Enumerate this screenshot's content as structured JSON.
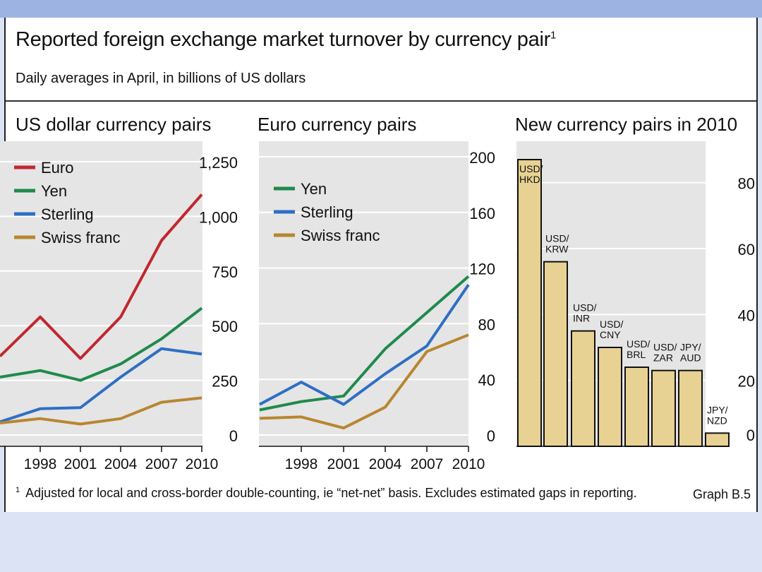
{
  "header": {
    "title": "Reported foreign exchange market turnover by currency pair",
    "title_note": "1",
    "subtitle": "Daily averages in April, in billions of US dollars"
  },
  "footer": {
    "note_marker": "1",
    "note": "Adjusted for local and cross-border double-counting, ie “net-net” basis. Excludes estimated gaps in reporting.",
    "graph_id": "Graph B.5"
  },
  "colors": {
    "euro": "#c0282f",
    "yen": "#1f8a4c",
    "sterling": "#2f6fc4",
    "swiss": "#b88630",
    "bar": "#e8d293",
    "plotbg": "#e5e5e5"
  },
  "chart_data": [
    {
      "type": "line",
      "title": "US dollar currency pairs",
      "x": [
        1995,
        1998,
        2001,
        2004,
        2007,
        2010
      ],
      "xticks": [
        "1998",
        "2001",
        "2004",
        "2007",
        "2010"
      ],
      "ylim": [
        0,
        1250
      ],
      "yticks": [
        "0",
        "250",
        "500",
        "750",
        "1,000",
        "1,250"
      ],
      "series": [
        {
          "name": "Euro",
          "color": "#c0282f",
          "values": [
            360,
            540,
            350,
            540,
            890,
            1100
          ]
        },
        {
          "name": "Yen",
          "color": "#1f8a4c",
          "values": [
            265,
            295,
            250,
            325,
            440,
            580
          ]
        },
        {
          "name": "Sterling",
          "color": "#2f6fc4",
          "values": [
            60,
            120,
            125,
            265,
            395,
            370
          ]
        },
        {
          "name": "Swiss franc",
          "color": "#b88630",
          "values": [
            55,
            75,
            50,
            75,
            150,
            170
          ]
        }
      ]
    },
    {
      "type": "line",
      "title": "Euro currency pairs",
      "x": [
        1995,
        1998,
        2001,
        2004,
        2007,
        2010
      ],
      "xticks": [
        "1998",
        "2001",
        "2004",
        "2007",
        "2010"
      ],
      "ylim": [
        0,
        200
      ],
      "yticks": [
        "0",
        "40",
        "80",
        "120",
        "160",
        "200"
      ],
      "series": [
        {
          "name": "Yen",
          "color": "#1f8a4c",
          "values": [
            18,
            24,
            28,
            62,
            88,
            114
          ]
        },
        {
          "name": "Sterling",
          "color": "#2f6fc4",
          "values": [
            22,
            38,
            22,
            44,
            64,
            108
          ]
        },
        {
          "name": "Swiss franc",
          "color": "#b88630",
          "values": [
            12,
            13,
            5,
            20,
            60,
            72
          ]
        }
      ]
    },
    {
      "type": "bar",
      "title": "New currency pairs in 2010",
      "categories": [
        "USD/ HKD",
        "USD/ KRW",
        "USD/ INR",
        "USD/ CNY",
        "USD/ BRL",
        "USD/ ZAR",
        "JPY/ AUD",
        "JPY/ NZD"
      ],
      "labels": [
        [
          "USD/",
          "HKD"
        ],
        [
          "USD/",
          "KRW"
        ],
        [
          "USD/",
          "INR"
        ],
        [
          "USD/",
          "CNY"
        ],
        [
          "USD/",
          "BRL"
        ],
        [
          "USD/",
          "ZAR"
        ],
        [
          "JPY/",
          "AUD"
        ],
        [
          "JPY/",
          "NZD"
        ]
      ],
      "values": [
        87,
        56,
        35,
        30,
        24,
        23,
        23,
        4
      ],
      "ylim": [
        0,
        88
      ],
      "yticks": [
        "0",
        "20",
        "40",
        "60",
        "80"
      ]
    }
  ]
}
